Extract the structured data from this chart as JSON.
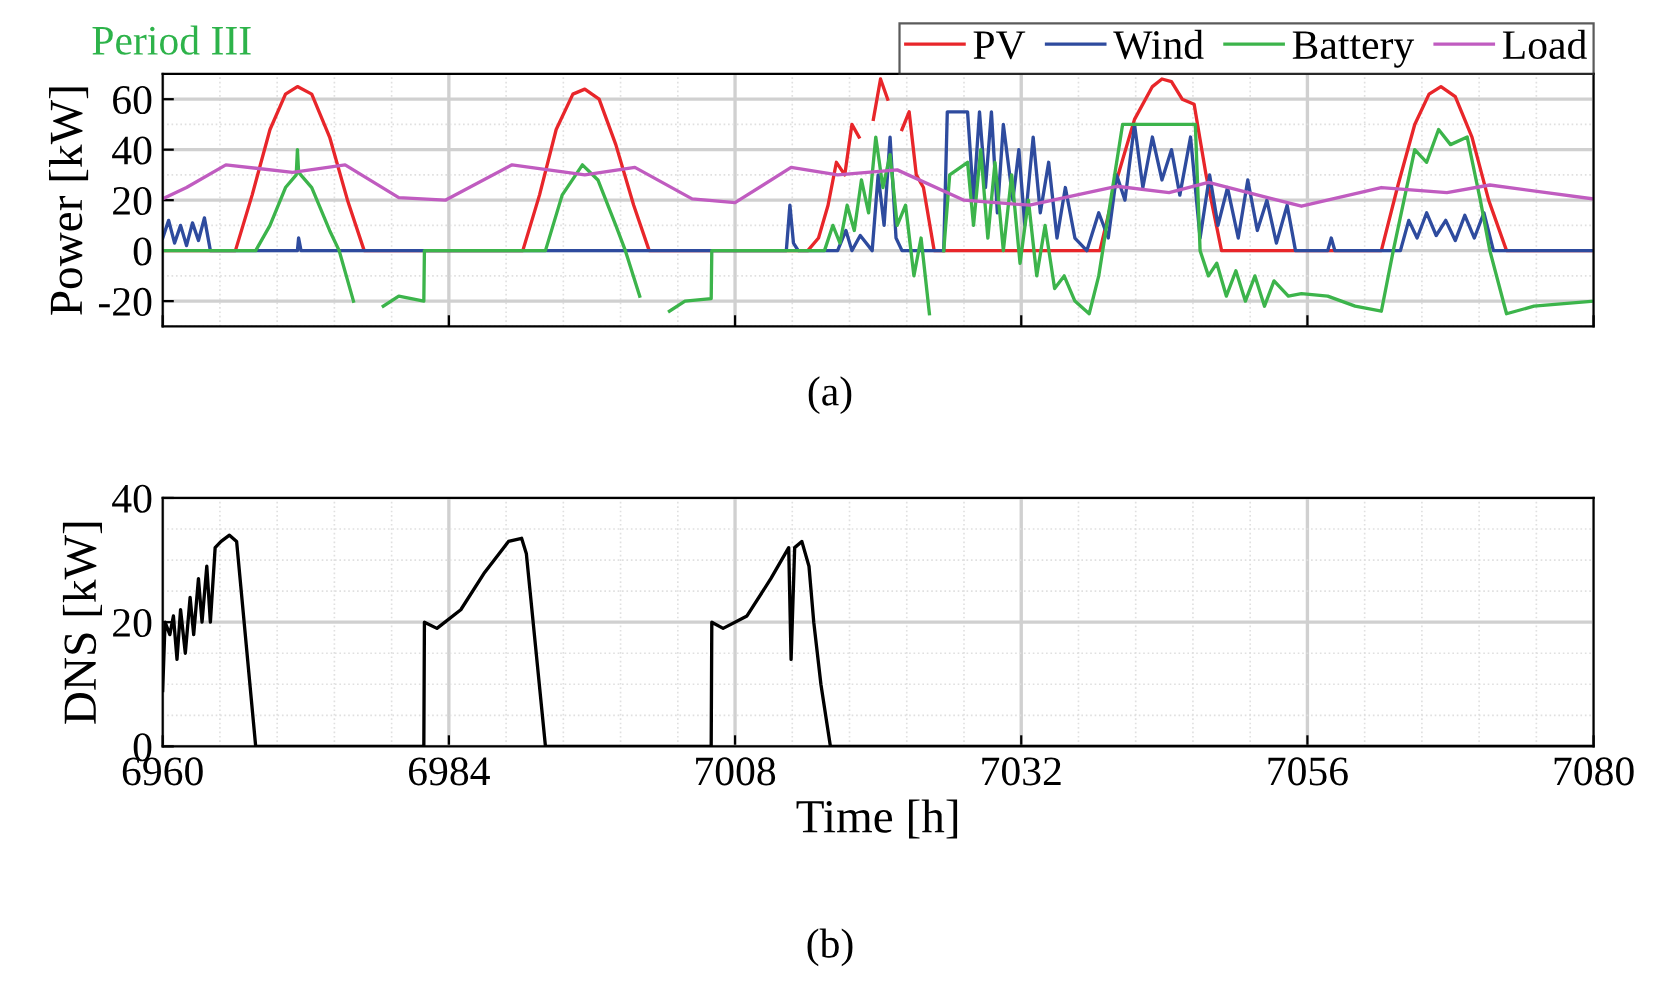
{
  "chart_data": [
    {
      "type": "line",
      "title": "Period III",
      "ylabel": "Power [kW]",
      "annotations": [
        "(a)"
      ],
      "xlim": [
        6960,
        7080
      ],
      "xticks": [
        6960,
        6984,
        7008,
        7032,
        7056,
        7080
      ],
      "ylim": [
        -30,
        70
      ],
      "yticks": [
        -20,
        0,
        20,
        40,
        60
      ],
      "tick_labels": "y",
      "grid": true,
      "legend": "top right",
      "marker": "none",
      "line_style": "solid",
      "series": [
        {
          "name": "PV",
          "color": "#e8262a",
          "x": [
            6960,
            6966.1,
            6967.5,
            6969,
            6970.3,
            6971.3,
            6972.5,
            6974,
            6975.5,
            6976.9,
            6990.2,
            6991.6,
            6993,
            6994.4,
            6995.4,
            6996.6,
            6998,
            6999.5,
            7000.8,
            7014.1,
            7015,
            7015.8,
            7016.5,
            7017.2,
            7017.8,
            7018.4,
            7019,
            7019.6,
            7020.2,
            7020.8,
            7021.4,
            7022,
            7022.6,
            7023.2,
            7023.8,
            7024.7,
            7038.6,
            7040,
            7041.5,
            7043,
            7043.8,
            7044.6,
            7045.5,
            7046.5,
            7047.5,
            7048.8,
            7062.2,
            7063.6,
            7065,
            7066.2,
            7067.2,
            7068.4,
            7069.8,
            7071.2,
            7072.7,
            7080
          ],
          "values": [
            0,
            0,
            22,
            48,
            62,
            65,
            62,
            45,
            20,
            0,
            0,
            22,
            48,
            62,
            64,
            60,
            42,
            18,
            0,
            0,
            5,
            18,
            35,
            30,
            50,
            45,
            null,
            52,
            68,
            60,
            null,
            48,
            55,
            30,
            25,
            0,
            0,
            28,
            52,
            65,
            68,
            67,
            60,
            58,
            30,
            0,
            0,
            26,
            50,
            62,
            65,
            61,
            45,
            20,
            0,
            0
          ]
        },
        {
          "name": "Wind",
          "color": "#2e4b9e",
          "x": [
            6960,
            6960.5,
            6961,
            6961.5,
            6962,
            6962.5,
            6963,
            6963.5,
            6964,
            6971.3,
            6971.4,
            6971.6,
            7012.3,
            7012.6,
            7012.9,
            7013.3,
            7016.6,
            7017.3,
            7017.8,
            7018.5,
            7019.5,
            7020,
            7020.5,
            7021,
            7021.5,
            7022,
            7025.5,
            7025.8,
            7027.5,
            7028,
            7028.5,
            7029,
            7029.5,
            7030,
            7030.5,
            7031.3,
            7031.8,
            7032.3,
            7033,
            7033.6,
            7034.3,
            7035,
            7035.7,
            7036.5,
            7037.5,
            7038.5,
            7039.3,
            7040,
            7040.7,
            7041.5,
            7042.2,
            7043,
            7043.8,
            7044.6,
            7045.3,
            7046.2,
            7047,
            7047.8,
            7048.5,
            7049.3,
            7050.2,
            7051,
            7051.8,
            7052.6,
            7053.4,
            7054.3,
            7055,
            7057.7,
            7058,
            7058.3,
            7063.8,
            7064.5,
            7065.2,
            7066,
            7066.8,
            7067.6,
            7068.4,
            7069.2,
            7070,
            7070.8,
            7071.6,
            7080
          ],
          "values": [
            5,
            12,
            3,
            10,
            2,
            11,
            4,
            13,
            0,
            0,
            5,
            0,
            0,
            18,
            3,
            0,
            0,
            8,
            0,
            6,
            0,
            30,
            10,
            45,
            5,
            0,
            0,
            55,
            55,
            20,
            55,
            25,
            55,
            15,
            50,
            20,
            40,
            10,
            45,
            15,
            35,
            5,
            25,
            5,
            0,
            15,
            5,
            30,
            20,
            50,
            25,
            45,
            28,
            40,
            22,
            45,
            5,
            30,
            10,
            25,
            5,
            28,
            8,
            20,
            3,
            18,
            0,
            0,
            5,
            0,
            0,
            12,
            5,
            15,
            6,
            12,
            4,
            14,
            5,
            15,
            0,
            0
          ]
        },
        {
          "name": "Battery",
          "color": "#3cb44b",
          "x": [
            6960,
            6967.8,
            6969,
            6970.3,
            6971.2,
            6971.3,
            6971.4,
            6972.5,
            6974,
            6974.8,
            6976,
            6977,
            6978.5,
            6979.8,
            6981.9,
            6981.95,
            6992.1,
            6993.5,
            6995.2,
            6996.5,
            6998,
            6998.8,
            7000,
            7001,
            7002.5,
            7003.8,
            7006,
            7006.05,
            7015.5,
            7016.2,
            7016.8,
            7017.4,
            7018,
            7018.6,
            7019.2,
            7019.8,
            7020.4,
            7021,
            7021.6,
            7022.3,
            7023,
            7023.6,
            7024.3,
            7025,
            7025.5,
            7026,
            7027.5,
            7028,
            7028.6,
            7029.2,
            7029.8,
            7030.5,
            7031.2,
            7031.9,
            7032.6,
            7033.3,
            7034,
            7034.8,
            7035.6,
            7036.5,
            7037.7,
            7038.5,
            7039.5,
            7040.5,
            7046.6,
            7047,
            7047.7,
            7048.4,
            7049.2,
            7050,
            7050.8,
            7051.6,
            7052.4,
            7053.2,
            7054.4,
            7055.5,
            7057.7,
            7060,
            7062.2,
            7063.2,
            7065,
            7066,
            7067,
            7068,
            7069.4,
            7070.5,
            7071.3,
            7072.7,
            7075,
            7080
          ],
          "values": [
            0,
            0,
            10,
            25,
            30,
            40,
            31,
            25,
            8,
            0,
            -20,
            null,
            -22,
            -18,
            -20,
            0,
            0,
            22,
            34,
            28,
            10,
            0,
            -18,
            null,
            -24,
            -20,
            -19,
            0,
            0,
            10,
            3,
            18,
            8,
            28,
            15,
            45,
            25,
            38,
            10,
            18,
            -10,
            5,
            -25,
            null,
            0,
            30,
            35,
            10,
            40,
            5,
            35,
            0,
            30,
            -5,
            20,
            -10,
            10,
            -15,
            -10,
            -20,
            -25,
            -10,
            20,
            50,
            50,
            0,
            -10,
            -5,
            -18,
            -8,
            -20,
            -10,
            -22,
            -12,
            -18,
            -17,
            -18,
            -22,
            -24,
            0,
            40,
            35,
            48,
            42,
            45,
            20,
            0,
            -25,
            -22,
            -20
          ]
        },
        {
          "name": "Load",
          "color": "#c05cc0",
          "x": [
            6960,
            6962,
            6965.3,
            6970.9,
            6975.3,
            6979.8,
            6983.7,
            6989.3,
            6995.4,
            6999.6,
            7004.4,
            7008,
            7012.7,
            7016.6,
            7021.6,
            7027.2,
            7032.7,
            7040,
            7044.4,
            7047.7,
            7055.5,
            7062.2,
            7067.7,
            7071.3,
            7080
          ],
          "values": [
            20.5,
            25,
            34,
            31,
            34,
            21,
            20,
            34,
            30,
            33,
            20.5,
            19,
            33,
            30,
            32,
            20,
            18,
            25.5,
            23,
            27,
            17.6,
            25,
            23,
            26,
            20.5
          ]
        }
      ]
    },
    {
      "type": "line",
      "ylabel": "DNS [kW]",
      "xlabel": "Time [h]",
      "annotations": [
        "(b)"
      ],
      "xlim": [
        6960,
        7080
      ],
      "xticks": [
        6960,
        6984,
        7008,
        7032,
        7056,
        7080
      ],
      "ylim": [
        0,
        40
      ],
      "yticks": [
        0,
        20,
        40
      ],
      "grid": true,
      "marker": "none",
      "line_style": "solid",
      "series": [
        {
          "color": "#000000",
          "x": [
            6960,
            6960.2,
            6960.6,
            6960.9,
            6961.2,
            6961.5,
            6961.9,
            6962.3,
            6962.6,
            6963,
            6963.3,
            6963.7,
            6964,
            6964.4,
            6964.9,
            6965.6,
            6966.2,
            6967.8,
            6981.9,
            6981.95,
            6983,
            6985,
            6987,
            6989,
            6990.1,
            6990.5,
            6992.1,
            7006,
            7006.05,
            7007,
            7009,
            7011,
            7012.5,
            7012.7,
            7013,
            7013.6,
            7014.2,
            7014.6,
            7015.2,
            7016,
            7080
          ],
          "values": [
            9,
            20,
            18,
            21,
            14,
            22,
            15,
            24,
            18,
            27,
            20,
            29,
            20,
            32,
            33,
            34,
            33,
            0,
            0,
            20,
            19,
            22,
            28,
            33,
            33.5,
            31,
            0,
            0,
            20,
            19,
            21,
            27,
            32,
            14,
            32,
            33,
            29,
            20,
            10,
            0,
            0
          ]
        }
      ]
    }
  ]
}
